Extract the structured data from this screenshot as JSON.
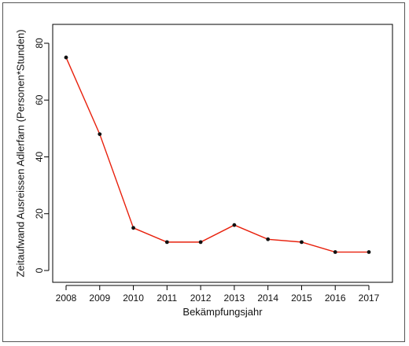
{
  "chart_data": {
    "type": "line",
    "x": [
      2008,
      2009,
      2010,
      2011,
      2012,
      2013,
      2014,
      2015,
      2016,
      2017
    ],
    "y": [
      75,
      48,
      15,
      10,
      10,
      16,
      11,
      10,
      6.5,
      6.5
    ],
    "series": [
      {
        "values": [
          75,
          48,
          15,
          10,
          10,
          16,
          11,
          10,
          6.5,
          6.5
        ]
      }
    ],
    "title": "",
    "xlabel": "Bekämpfungsjahr",
    "ylabel": "Zeitaufwand Ausreissen Adlerfarn (Personen*Stunden)",
    "xlim": [
      2008,
      2017
    ],
    "ylim": [
      0,
      80
    ],
    "y_ticks": [
      0,
      20,
      40,
      60,
      80
    ],
    "x_ticks": [
      2008,
      2009,
      2010,
      2011,
      2012,
      2013,
      2014,
      2015,
      2016,
      2017
    ],
    "grid": false,
    "legend": "none",
    "colors": {
      "line": "#e8200c",
      "point": "#111111",
      "axis": "#000000"
    }
  }
}
